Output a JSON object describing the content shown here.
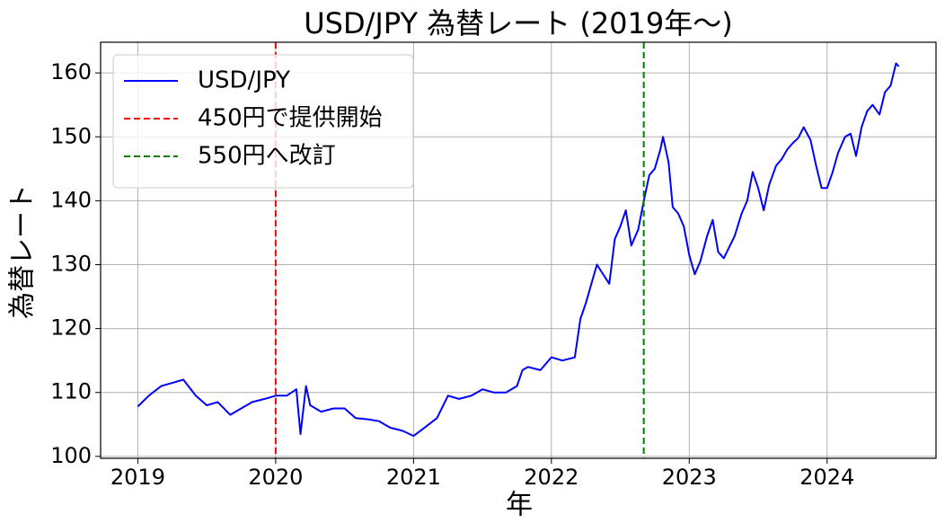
{
  "chart_data": {
    "type": "line",
    "title": "USD/JPY 為替レート (2019年〜)",
    "x_label": "年",
    "y_label": "為替レート",
    "x": [
      2019.0,
      2019.08,
      2019.17,
      2019.25,
      2019.33,
      2019.42,
      2019.5,
      2019.58,
      2019.67,
      2019.75,
      2019.83,
      2019.92,
      2020.0,
      2020.08,
      2020.15,
      2020.18,
      2020.22,
      2020.25,
      2020.33,
      2020.42,
      2020.5,
      2020.58,
      2020.67,
      2020.75,
      2020.83,
      2020.92,
      2021.0,
      2021.08,
      2021.17,
      2021.25,
      2021.33,
      2021.42,
      2021.5,
      2021.58,
      2021.67,
      2021.75,
      2021.79,
      2021.83,
      2021.92,
      2022.0,
      2022.08,
      2022.17,
      2022.21,
      2022.25,
      2022.33,
      2022.42,
      2022.46,
      2022.5,
      2022.54,
      2022.58,
      2022.63,
      2022.67,
      2022.71,
      2022.75,
      2022.79,
      2022.81,
      2022.85,
      2022.88,
      2022.92,
      2022.96,
      2023.0,
      2023.04,
      2023.08,
      2023.13,
      2023.17,
      2023.21,
      2023.25,
      2023.33,
      2023.38,
      2023.42,
      2023.46,
      2023.5,
      2023.54,
      2023.58,
      2023.63,
      2023.67,
      2023.71,
      2023.75,
      2023.79,
      2023.83,
      2023.88,
      2023.92,
      2023.96,
      2024.0,
      2024.04,
      2024.08,
      2024.13,
      2024.17,
      2024.21,
      2024.25,
      2024.29,
      2024.33,
      2024.38,
      2024.42,
      2024.46,
      2024.5,
      2024.52
    ],
    "series": [
      {
        "name": "USD/JPY",
        "color": "#0000ff",
        "values": [
          107.8,
          109.5,
          111,
          111.5,
          112,
          109.5,
          108,
          108.5,
          106.5,
          107.5,
          108.5,
          109,
          109.5,
          109.5,
          110.5,
          103.5,
          111,
          108,
          107,
          107.5,
          107.5,
          106,
          105.8,
          105.5,
          104.5,
          104,
          103.2,
          104.5,
          106,
          109.5,
          109,
          109.5,
          110.5,
          110,
          110,
          111,
          113.5,
          114,
          113.5,
          115.5,
          115,
          115.5,
          121.5,
          124,
          130,
          127,
          134,
          136,
          138.5,
          133,
          135.5,
          140,
          144,
          145,
          148,
          150,
          146,
          139,
          138,
          136,
          131.5,
          128.5,
          130.5,
          134.5,
          137,
          132,
          131,
          134.5,
          138,
          140,
          144.5,
          142,
          138.5,
          142.5,
          145.5,
          146.5,
          148,
          149,
          149.8,
          151.5,
          149.5,
          145.5,
          142,
          142,
          144.5,
          147.5,
          150,
          150.5,
          147,
          151.5,
          154,
          155,
          153.5,
          157,
          158,
          161.5,
          161
        ]
      }
    ],
    "vlines": [
      {
        "name": "450円で提供開始",
        "color": "#ff0000",
        "x": 2020.0,
        "style": "dashed"
      },
      {
        "name": "550円へ改訂",
        "color": "#008000",
        "x": 2022.67,
        "style": "dashed"
      }
    ],
    "xlim": [
      2018.73,
      2024.79
    ],
    "xticks": [
      2019,
      2020,
      2021,
      2022,
      2023,
      2024
    ],
    "ylim": [
      99.7,
      164.8
    ],
    "yticks": [
      100,
      110,
      120,
      130,
      140,
      150,
      160
    ],
    "grid": true,
    "legend": "upper left"
  }
}
